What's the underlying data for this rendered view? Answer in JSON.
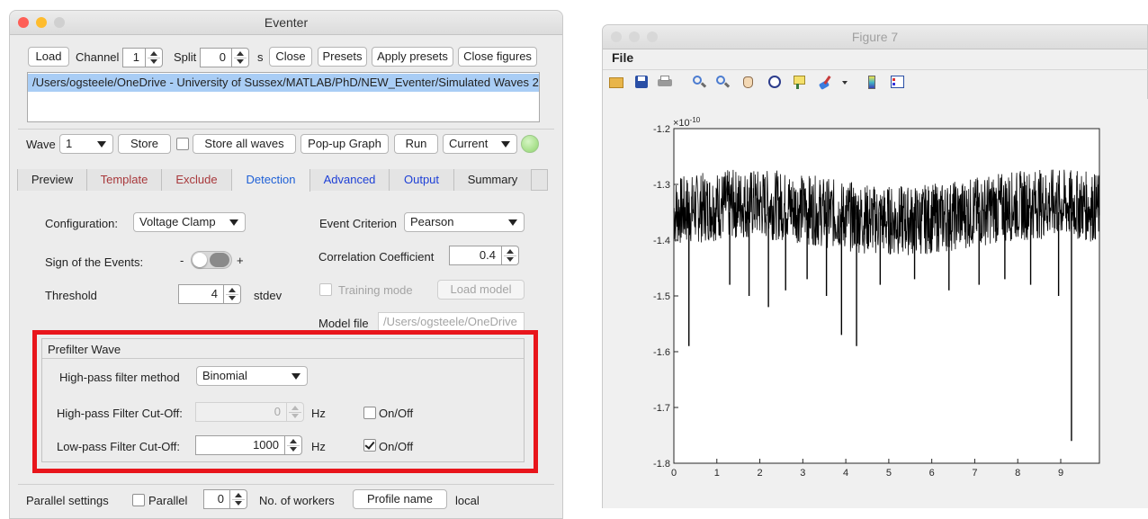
{
  "eventer": {
    "title": "Eventer",
    "load_label": "Load",
    "channel_label": "Channel",
    "channel_value": "1",
    "split_label": "Split",
    "split_value": "0",
    "split_unit": "s",
    "close_label": "Close",
    "presets_label": "Presets",
    "apply_presets_label": "Apply presets",
    "close_figures_label": "Close figures",
    "file_path": "/Users/ogsteele/OneDrive - University of Sussex/MATLAB/PhD/NEW_Eventer/Simulated Waves 2",
    "wave_label": "Wave",
    "wave_value": "1",
    "store_label": "Store",
    "store_all_label": "Store all waves",
    "popup_label": "Pop-up Graph",
    "run_label": "Run",
    "current_label": "Current",
    "tabs": [
      "Preview",
      "Template",
      "Exclude",
      "Detection",
      "Advanced",
      "Output",
      "Summary"
    ],
    "tab_colors": [
      "#222222",
      "#a8383b",
      "#a8383b",
      "#1d5fd6",
      "#1d3fd6",
      "#1d3fd6",
      "#222222"
    ],
    "detection": {
      "configuration_label": "Configuration:",
      "configuration_value": "Voltage Clamp",
      "sign_label": "Sign of the Events:",
      "sign_minus": "-",
      "sign_plus": "+",
      "threshold_label": "Threshold",
      "threshold_value": "4",
      "threshold_unit": "stdev",
      "event_criterion_label": "Event Criterion",
      "event_criterion_value": "Pearson",
      "correlation_label": "Correlation Coefficient",
      "correlation_value": "0.4",
      "training_label": "Training mode",
      "load_model_label": "Load model",
      "model_file_label": "Model file",
      "model_file_value": "/Users/ogsteele/OneDrive"
    },
    "prefilter": {
      "title": "Prefilter Wave",
      "highpass_method_label": "High-pass filter method",
      "highpass_method_value": "Binomial",
      "highpass_cutoff_label": "High-pass Filter Cut-Off:",
      "highpass_cutoff_value": "0",
      "highpass_unit": "Hz",
      "highpass_onoff": "On/Off",
      "lowpass_cutoff_label": "Low-pass Filter Cut-Off:",
      "lowpass_cutoff_value": "1000",
      "lowpass_unit": "Hz",
      "lowpass_onoff": "On/Off"
    },
    "parallel": {
      "settings_label": "Parallel settings",
      "parallel_label": "Parallel",
      "workers_value": "0",
      "workers_label": "No. of workers",
      "profile_label": "Profile name",
      "profile_value": "local"
    }
  },
  "figure": {
    "title": "Figure 7",
    "menu_file": "File",
    "exponent": "×10",
    "exponent_power": "-10",
    "yticks": [
      "-1.2",
      "-1.3",
      "-1.4",
      "-1.5",
      "-1.6",
      "-1.7",
      "-1.8"
    ],
    "xticks": [
      "0",
      "1",
      "2",
      "3",
      "4",
      "5",
      "6",
      "7",
      "8",
      "9"
    ]
  },
  "chart_data": {
    "type": "line",
    "title": "",
    "xlabel": "",
    "ylabel": "",
    "xlim": [
      0,
      9.9
    ],
    "ylim": [
      -1.8,
      -1.2
    ],
    "y_scale": "×10^-10",
    "baseline": -1.35,
    "noise_band": [
      -1.42,
      -1.28
    ],
    "events": [
      {
        "x": 0.35,
        "y": -1.59
      },
      {
        "x": 1.3,
        "y": -1.48
      },
      {
        "x": 1.75,
        "y": -1.5
      },
      {
        "x": 2.2,
        "y": -1.52
      },
      {
        "x": 2.6,
        "y": -1.49
      },
      {
        "x": 3.1,
        "y": -1.47
      },
      {
        "x": 3.55,
        "y": -1.5
      },
      {
        "x": 3.9,
        "y": -1.57
      },
      {
        "x": 4.25,
        "y": -1.59
      },
      {
        "x": 4.8,
        "y": -1.48
      },
      {
        "x": 5.6,
        "y": -1.47
      },
      {
        "x": 6.4,
        "y": -1.49
      },
      {
        "x": 7.1,
        "y": -1.48
      },
      {
        "x": 7.7,
        "y": -1.47
      },
      {
        "x": 8.3,
        "y": -1.48
      },
      {
        "x": 8.95,
        "y": -1.5
      },
      {
        "x": 9.25,
        "y": -1.76
      }
    ],
    "grid": false
  }
}
